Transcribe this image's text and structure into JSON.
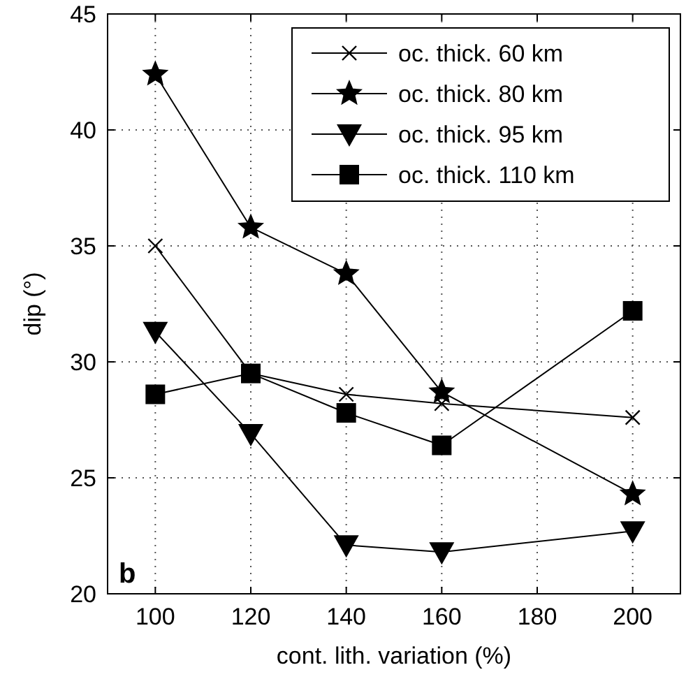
{
  "chart_data": {
    "type": "line",
    "xlabel": "cont. lith. variation (%)",
    "ylabel": "dip (°)",
    "x": [
      100,
      120,
      140,
      160,
      200
    ],
    "xlim": [
      90,
      210
    ],
    "xticks": [
      100,
      120,
      140,
      160,
      180,
      200
    ],
    "ylim": [
      20,
      45
    ],
    "yticks": [
      20,
      25,
      30,
      35,
      40,
      45
    ],
    "grid": true,
    "legend": "top right",
    "annotations": [
      "b"
    ],
    "series": [
      {
        "name": "oc. thick. 60 km",
        "color": "#000000",
        "marker": "cross",
        "values": [
          35,
          29.5,
          28.6,
          28.2,
          27.6
        ]
      },
      {
        "name": "oc. thick. 80 km",
        "color": "#000000",
        "marker": "star",
        "values": [
          42.4,
          35.8,
          33.8,
          28.7,
          24.3
        ]
      },
      {
        "name": "oc. thick. 95 km",
        "color": "#000000",
        "marker": "triangle",
        "values": [
          31.3,
          26.9,
          22.1,
          21.8,
          22.7
        ]
      },
      {
        "name": "oc. thick. 110 km",
        "color": "#000000",
        "marker": "square",
        "values": [
          28.6,
          29.5,
          27.8,
          26.4,
          32.2
        ]
      }
    ]
  }
}
